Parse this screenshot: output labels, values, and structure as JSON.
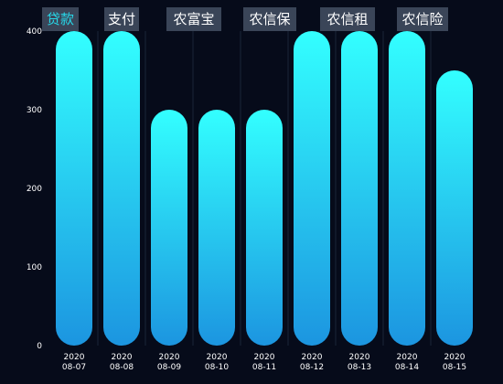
{
  "tabs": [
    {
      "label": "贷款",
      "active": true
    },
    {
      "label": "支付",
      "active": false
    },
    {
      "label": "农富宝",
      "active": false
    },
    {
      "label": "农信保",
      "active": false
    },
    {
      "label": "农信租",
      "active": false
    },
    {
      "label": "农信险",
      "active": false
    }
  ],
  "colors": {
    "background": "#060b1a",
    "bar_top": "#33ffff",
    "bar_bottom": "#1c95e0",
    "tab_bg": "#3a4558",
    "tab_active_text": "#27d9ea",
    "grid": "#1a2438"
  },
  "chart_data": {
    "type": "bar",
    "categories": [
      [
        "2020",
        "08-07"
      ],
      [
        "2020",
        "08-08"
      ],
      [
        "2020",
        "08-09"
      ],
      [
        "2020",
        "08-10"
      ],
      [
        "2020",
        "08-11"
      ],
      [
        "2020",
        "08-12"
      ],
      [
        "2020",
        "08-13"
      ],
      [
        "2020",
        "08-14"
      ],
      [
        "2020",
        "08-15"
      ]
    ],
    "values": [
      400,
      400,
      300,
      300,
      300,
      400,
      400,
      400,
      350
    ],
    "ylim": [
      0,
      400
    ],
    "yticks": [
      0,
      100,
      200,
      300,
      400
    ],
    "grid": "vertical separators"
  }
}
